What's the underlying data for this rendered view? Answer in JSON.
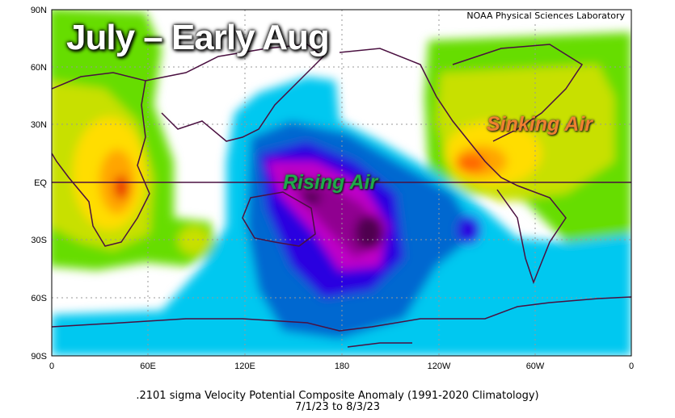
{
  "map": {
    "credit": "NOAA Physical Sciences Laboratory",
    "headline": "July – Early Aug",
    "annotations": {
      "rising": "Rising Air",
      "sinking": "Sinking Air"
    },
    "annotation_colors": {
      "rising": "#1faa4a",
      "sinking": "#f08030"
    },
    "lat_ticks": [
      "90N",
      "60N",
      "30N",
      "EQ",
      "30S",
      "60S",
      "90S"
    ],
    "lon_ticks": [
      "0",
      "60E",
      "120E",
      "180",
      "120W",
      "60W",
      "0"
    ],
    "caption_line1": ".2101 sigma Velocity Potential  Composite Anomaly (1991-2020 Climatology)",
    "caption_line2": "7/1/23  to 8/3/23",
    "palette": {
      "pos1": "#66dd00",
      "pos2": "#c8e000",
      "pos3": "#ffdd00",
      "pos4": "#ffa500",
      "pos5": "#ff6600",
      "pos6": "#e83000",
      "neg1": "#00c8f0",
      "neg2": "#0068d0",
      "neg3": "#2a00e0",
      "neg4": "#c000c8",
      "neg5": "#900090",
      "neg6": "#500050"
    }
  }
}
